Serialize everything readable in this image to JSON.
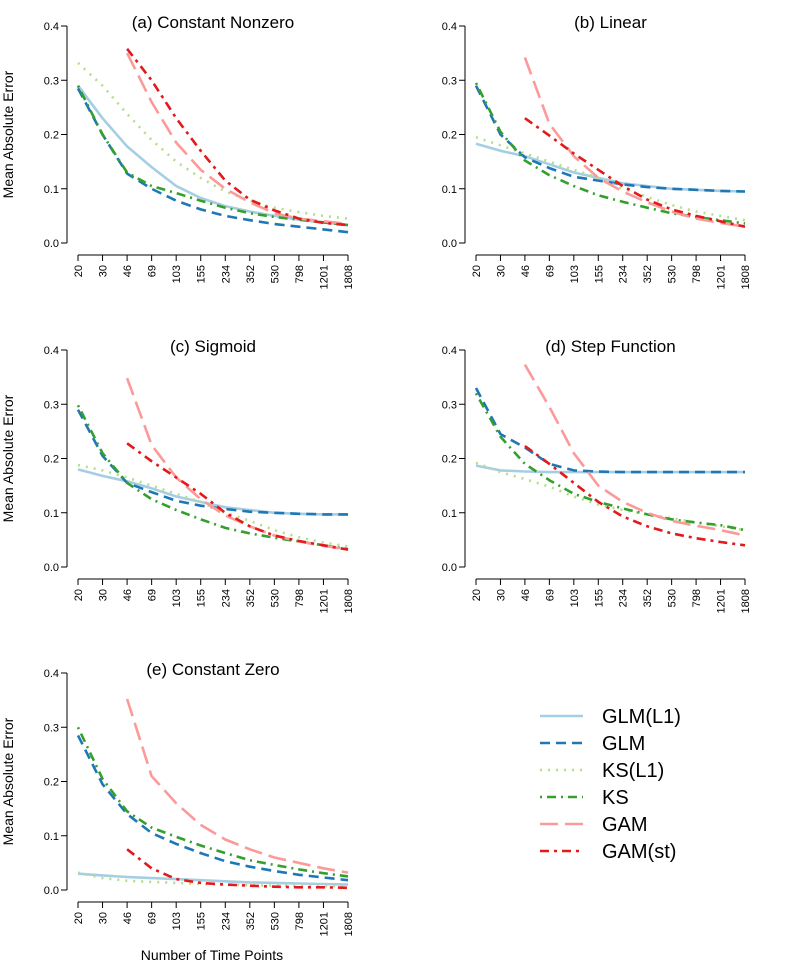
{
  "chart_data": {
    "type": "line",
    "xlabel": "Number of Time Points",
    "ylabel": "Mean Absolute Error",
    "x": [
      "20",
      "30",
      "46",
      "69",
      "103",
      "155",
      "234",
      "352",
      "530",
      "798",
      "1201",
      "1808"
    ],
    "ylim": [
      0,
      0.4
    ],
    "yticks": [
      "0.0",
      "0.1",
      "0.2",
      "0.3",
      "0.4"
    ],
    "series_styles": [
      {
        "name": "GLM(L1)",
        "color": "#a6cee3",
        "dash": "solid"
      },
      {
        "name": "GLM",
        "color": "#1f78b4",
        "dash": "dashed"
      },
      {
        "name": "KS(L1)",
        "color": "#b2df8a",
        "dash": "dotted"
      },
      {
        "name": "KS",
        "color": "#33a02c",
        "dash": "dotdash"
      },
      {
        "name": "GAM",
        "color": "#fb9a99",
        "dash": "longdash"
      },
      {
        "name": "GAM(st)",
        "color": "#e31a1c",
        "dash": "twodash"
      }
    ],
    "panels": [
      {
        "title": "(a) Constant Nonzero",
        "series": [
          {
            "name": "GLM(L1)",
            "values": [
              0.29,
              0.23,
              0.178,
              0.14,
              0.105,
              0.083,
              0.068,
              0.058,
              0.05,
              0.043,
              0.038,
              0.033
            ]
          },
          {
            "name": "GLM",
            "values": [
              0.285,
              0.2,
              0.128,
              0.1,
              0.078,
              0.062,
              0.05,
              0.042,
              0.035,
              0.03,
              0.025,
              0.02
            ]
          },
          {
            "name": "KS(L1)",
            "values": [
              0.332,
              0.29,
              0.238,
              0.19,
              0.15,
              0.12,
              0.095,
              0.078,
              0.065,
              0.057,
              0.05,
              0.045
            ]
          },
          {
            "name": "KS",
            "values": [
              0.29,
              0.2,
              0.13,
              0.105,
              0.092,
              0.078,
              0.065,
              0.055,
              0.048,
              0.043,
              0.038,
              0.033
            ]
          },
          {
            "name": "GAM",
            "values": [
              null,
              null,
              0.35,
              0.26,
              0.185,
              0.135,
              0.1,
              0.075,
              0.055,
              0.045,
              0.04,
              0.035
            ]
          },
          {
            "name": "GAM(st)",
            "values": [
              null,
              null,
              0.358,
              0.3,
              0.23,
              0.17,
              0.115,
              0.08,
              0.06,
              0.045,
              0.037,
              0.033
            ]
          }
        ]
      },
      {
        "title": "(b) Linear",
        "series": [
          {
            "name": "GLM(L1)",
            "values": [
              0.183,
              0.17,
              0.16,
              0.145,
              0.13,
              0.12,
              0.11,
              0.105,
              0.1,
              0.098,
              0.096,
              0.095
            ]
          },
          {
            "name": "GLM",
            "values": [
              0.29,
              0.2,
              0.158,
              0.138,
              0.122,
              0.115,
              0.108,
              0.103,
              0.1,
              0.098,
              0.096,
              0.095
            ]
          },
          {
            "name": "KS(L1)",
            "values": [
              0.195,
              0.18,
              0.165,
              0.15,
              0.135,
              0.12,
              0.1,
              0.085,
              0.07,
              0.058,
              0.05,
              0.042
            ]
          },
          {
            "name": "KS",
            "values": [
              0.295,
              0.205,
              0.152,
              0.125,
              0.105,
              0.088,
              0.076,
              0.065,
              0.055,
              0.048,
              0.042,
              0.036
            ]
          },
          {
            "name": "GAM",
            "values": [
              null,
              null,
              0.342,
              0.22,
              0.16,
              0.12,
              0.095,
              0.075,
              0.058,
              0.045,
              0.037,
              0.03
            ]
          },
          {
            "name": "GAM(st)",
            "values": [
              null,
              null,
              0.23,
              0.198,
              0.165,
              0.135,
              0.105,
              0.08,
              0.062,
              0.05,
              0.04,
              0.03
            ]
          }
        ]
      },
      {
        "title": "(c) Sigmoid",
        "series": [
          {
            "name": "GLM(L1)",
            "values": [
              0.18,
              0.168,
              0.158,
              0.145,
              0.13,
              0.12,
              0.11,
              0.105,
              0.1,
              0.098,
              0.097,
              0.097
            ]
          },
          {
            "name": "GLM",
            "values": [
              0.29,
              0.205,
              0.155,
              0.138,
              0.122,
              0.113,
              0.107,
              0.102,
              0.1,
              0.098,
              0.097,
              0.097
            ]
          },
          {
            "name": "KS(L1)",
            "values": [
              0.188,
              0.178,
              0.165,
              0.15,
              0.135,
              0.12,
              0.1,
              0.085,
              0.068,
              0.055,
              0.045,
              0.038
            ]
          },
          {
            "name": "KS",
            "values": [
              0.298,
              0.21,
              0.155,
              0.125,
              0.105,
              0.088,
              0.072,
              0.062,
              0.054,
              0.047,
              0.04,
              0.033
            ]
          },
          {
            "name": "GAM",
            "values": [
              null,
              null,
              0.348,
              0.225,
              0.165,
              0.125,
              0.095,
              0.075,
              0.058,
              0.047,
              0.039,
              0.032
            ]
          },
          {
            "name": "GAM(st)",
            "values": [
              null,
              null,
              0.228,
              0.195,
              0.165,
              0.135,
              0.1,
              0.075,
              0.058,
              0.048,
              0.04,
              0.032
            ]
          }
        ]
      },
      {
        "title": "(d) Step Function",
        "series": [
          {
            "name": "GLM(L1)",
            "values": [
              0.187,
              0.178,
              0.176,
              0.175,
              0.175,
              0.175,
              0.175,
              0.175,
              0.175,
              0.175,
              0.175,
              0.175
            ]
          },
          {
            "name": "GLM",
            "values": [
              0.33,
              0.245,
              0.22,
              0.19,
              0.178,
              0.176,
              0.175,
              0.175,
              0.175,
              0.175,
              0.175,
              0.175
            ]
          },
          {
            "name": "KS(L1)",
            "values": [
              0.192,
              0.175,
              0.162,
              0.148,
              0.13,
              0.115,
              0.105,
              0.097,
              0.09,
              0.082,
              0.075,
              0.068
            ]
          },
          {
            "name": "KS",
            "values": [
              0.32,
              0.24,
              0.19,
              0.16,
              0.135,
              0.12,
              0.108,
              0.097,
              0.088,
              0.082,
              0.077,
              0.068
            ]
          },
          {
            "name": "GAM",
            "values": [
              null,
              null,
              0.373,
              0.295,
              0.21,
              0.15,
              0.12,
              0.1,
              0.085,
              0.076,
              0.068,
              0.058
            ]
          },
          {
            "name": "GAM(st)",
            "values": [
              null,
              null,
              0.223,
              0.19,
              0.155,
              0.12,
              0.093,
              0.075,
              0.062,
              0.053,
              0.046,
              0.04
            ]
          }
        ]
      },
      {
        "title": "(e) Constant Zero",
        "series": [
          {
            "name": "GLM(L1)",
            "values": [
              0.03,
              0.027,
              0.024,
              0.022,
              0.02,
              0.018,
              0.016,
              0.014,
              0.013,
              0.012,
              0.011,
              0.01
            ]
          },
          {
            "name": "GLM",
            "values": [
              0.285,
              0.195,
              0.14,
              0.105,
              0.085,
              0.068,
              0.053,
              0.043,
              0.035,
              0.028,
              0.023,
              0.018
            ]
          },
          {
            "name": "KS(L1)",
            "values": [
              0.032,
              0.022,
              0.017,
              0.015,
              0.013,
              0.011,
              0.01,
              0.009,
              0.008,
              0.008,
              0.007,
              0.007
            ]
          },
          {
            "name": "KS",
            "values": [
              0.3,
              0.205,
              0.145,
              0.115,
              0.098,
              0.082,
              0.068,
              0.055,
              0.046,
              0.038,
              0.031,
              0.025
            ]
          },
          {
            "name": "GAM",
            "values": [
              null,
              null,
              0.352,
              0.21,
              0.16,
              0.12,
              0.093,
              0.075,
              0.06,
              0.05,
              0.04,
              0.032
            ]
          },
          {
            "name": "GAM(st)",
            "values": [
              null,
              null,
              0.075,
              0.04,
              0.02,
              0.013,
              0.01,
              0.008,
              0.006,
              0.005,
              0.005,
              0.004
            ]
          }
        ]
      }
    ]
  }
}
